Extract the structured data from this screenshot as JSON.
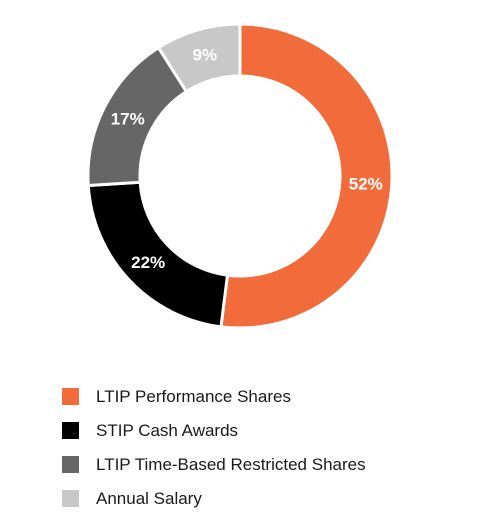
{
  "chart_data": {
    "type": "pie",
    "title": "",
    "categories": [
      "LTIP Performance Shares",
      "STIP Cash Awards",
      "LTIP Time-Based Restricted Shares",
      "Annual Salary"
    ],
    "values": [
      52,
      22,
      17,
      9
    ],
    "value_labels": [
      "52%",
      "22%",
      "17%",
      "9%"
    ],
    "colors": [
      "#f26b3a",
      "#000000",
      "#666666",
      "#c8c8c8"
    ],
    "donut": true,
    "legend": "bottom"
  }
}
